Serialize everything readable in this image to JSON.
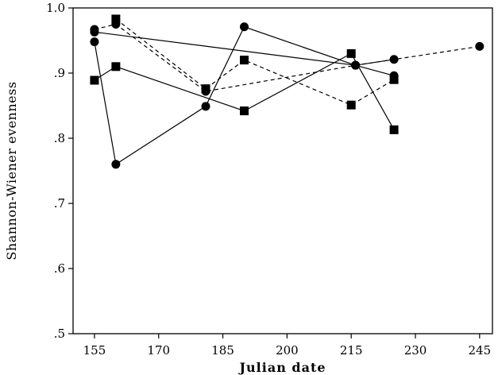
{
  "chart_data": {
    "type": "line",
    "title": "",
    "xlabel": "Julian date",
    "ylabel": "Shannon-Wiener evenness",
    "xlim": [
      150,
      248
    ],
    "ylim": [
      0.5,
      1.0
    ],
    "x_ticks": [
      155,
      170,
      185,
      200,
      215,
      230,
      245
    ],
    "x_tick_labels": [
      "155",
      "170",
      "185",
      "200",
      "215",
      "230",
      "245"
    ],
    "y_ticks": [
      0.5,
      0.6,
      0.7,
      0.8,
      0.9,
      1.0
    ],
    "y_tick_labels": [
      ".5",
      ".6",
      ".7",
      ".8",
      ".9",
      "1.0"
    ],
    "grid": false,
    "legend": "none",
    "series": [
      {
        "marker": "circle",
        "line": "solid",
        "color": "#000000",
        "points": [
          [
            155,
            0.948
          ],
          [
            160,
            0.76
          ],
          [
            181,
            0.849
          ],
          [
            190,
            0.971
          ],
          [
            216,
            0.912
          ],
          [
            225,
            0.896
          ]
        ]
      },
      {
        "marker": "circle",
        "line": "dashed",
        "color": "#000000",
        "points": [
          [
            155,
            0.967
          ],
          [
            160,
            0.975
          ],
          [
            181,
            0.872
          ],
          [
            216,
            0.912
          ],
          [
            245,
            0.941
          ]
        ]
      },
      {
        "marker": "circle",
        "line": "solid",
        "color": "#000000",
        "points": [
          [
            155,
            0.963
          ],
          [
            216,
            0.912
          ],
          [
            225,
            0.921
          ]
        ]
      },
      {
        "marker": "square",
        "line": "solid",
        "color": "#000000",
        "points": [
          [
            155,
            0.889
          ],
          [
            160,
            0.91
          ],
          [
            190,
            0.842
          ],
          [
            215,
            0.93
          ],
          [
            225,
            0.813
          ]
        ]
      },
      {
        "marker": "square",
        "line": "dashed",
        "color": "#000000",
        "points": [
          [
            160,
            0.983
          ],
          [
            181,
            0.876
          ],
          [
            190,
            0.92
          ],
          [
            215,
            0.851
          ],
          [
            225,
            0.89
          ]
        ]
      }
    ]
  }
}
